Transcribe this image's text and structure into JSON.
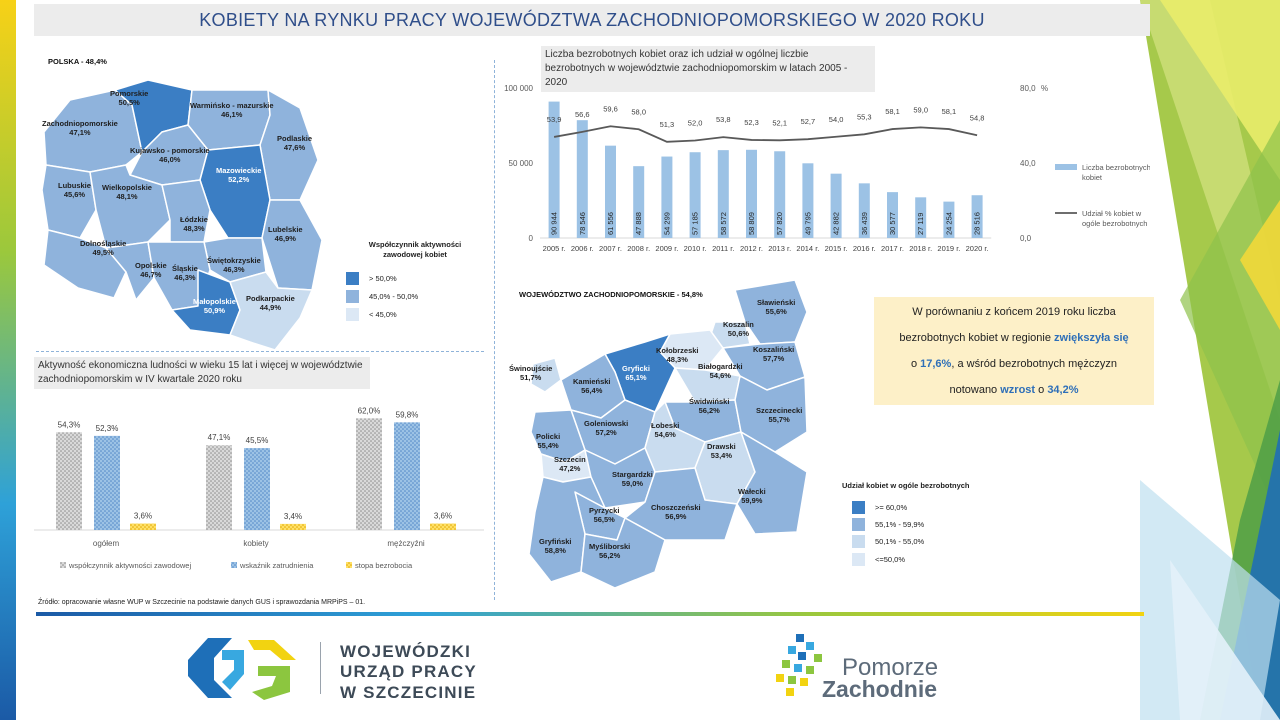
{
  "title": "KOBIETY NA RYNKU PRACY WOJEWÓDZTWA ZACHODNIOPOMORSKIEGO  W 2020 ROKU",
  "colors": {
    "dark": "#3b7ec4",
    "mid": "#8fb3dc",
    "light": "#c9dcef",
    "lighter": "#dce8f5",
    "title": "#2f4e8a",
    "accent": "#2e6fb8",
    "bar_blue": "#9cc2e5",
    "line": "#595959",
    "yellow": "#f2c21b",
    "grey_bar": "#bfbfbf"
  },
  "poland_map": {
    "heading": "POLSKA - 48,4%",
    "regions": [
      {
        "name": "Pomorskie",
        "value": "50,5%",
        "class": "dark"
      },
      {
        "name": "Warmińsko - mazurskie",
        "value": "46,1%",
        "class": "mid"
      },
      {
        "name": "Zachodniopomorskie",
        "value": "47,1%",
        "class": "mid"
      },
      {
        "name": "Podlaskie",
        "value": "47,6%",
        "class": "mid"
      },
      {
        "name": "Kujawsko - pomorskie",
        "value": "46,0%",
        "class": "mid"
      },
      {
        "name": "Mazowieckie",
        "value": "52,2%",
        "class": "dark"
      },
      {
        "name": "Lubuskie",
        "value": "45,6%",
        "class": "mid"
      },
      {
        "name": "Wielkopolskie",
        "value": "48,1%",
        "class": "mid"
      },
      {
        "name": "Łódzkie",
        "value": "48,3%",
        "class": "mid"
      },
      {
        "name": "Lubelskie",
        "value": "46,9%",
        "class": "mid"
      },
      {
        "name": "Dolnośląskie",
        "value": "49,5%",
        "class": "mid"
      },
      {
        "name": "Świętokrzyskie",
        "value": "46,3%",
        "class": "mid"
      },
      {
        "name": "Opolskie",
        "value": "46,7%",
        "class": "mid"
      },
      {
        "name": "Śląskie",
        "value": "46,3%",
        "class": "mid"
      },
      {
        "name": "Małopolskie",
        "value": "50,9%",
        "class": "dark"
      },
      {
        "name": "Podkarpackie",
        "value": "44,9%",
        "class": "light"
      }
    ],
    "legend_title": "Współczynnik aktywności zawodowej  kobiet",
    "legend": [
      {
        "label": "> 50,0%",
        "class": "dark"
      },
      {
        "label": "45,0%  - 50,0%",
        "class": "mid"
      },
      {
        "label": "< 45,0%",
        "class": "light"
      }
    ]
  },
  "activity_chart_title": "Aktywność ekonomiczna ludności w wieku 15 lat i więcej w województwie zachodniopomorskim w IV kwartale 2020 roku",
  "unemployment_chart_title": "Liczba bezrobotnych kobiet oraz ich udział w ogólnej liczbie bezrobotnych w województwie zachodniopomorskim w latach 2005 - 2020",
  "chart_data": [
    {
      "type": "bar",
      "title": "Aktywność ekonomiczna ludności w wieku 15 lat i więcej w województwie zachodniopomorskim w IV kwartale 2020 roku",
      "categories": [
        "ogółem",
        "kobiety",
        "mężczyźni"
      ],
      "series": [
        {
          "name": "współczynnik aktywności zawodowej",
          "values": [
            54.3,
            47.1,
            62.0
          ],
          "labels": [
            "54,3%",
            "47,1%",
            "62,0%"
          ]
        },
        {
          "name": "wskaźnik zatrudnienia",
          "values": [
            52.3,
            45.5,
            59.8
          ],
          "labels": [
            "52,3%",
            "45,5%",
            "59,8%"
          ]
        },
        {
          "name": "stopa bezrobocia",
          "values": [
            3.6,
            3.4,
            3.6
          ],
          "labels": [
            "3,6%",
            "3,4%",
            "3,6%"
          ]
        }
      ],
      "ylim": [
        0,
        70
      ],
      "legend_position": "bottom"
    },
    {
      "type": "bar+line",
      "title": "Liczba bezrobotnych kobiet oraz ich udział w ogólnej liczbie bezrobotnych w województwie zachodniopomorskim w latach 2005 - 2020",
      "categories": [
        "2005 r.",
        "2006 r.",
        "2007 r.",
        "2008 r.",
        "2009 r.",
        "2010 r.",
        "2011 r.",
        "2012 r.",
        "2013 r.",
        "2014 r.",
        "2015 r.",
        "2016 r.",
        "2017 r.",
        "2018 r.",
        "2019 r.",
        "2020 r."
      ],
      "series": [
        {
          "name": "Liczba bezrobotnych kobiet",
          "type": "bar",
          "axis": "left",
          "values": [
            90944,
            78546,
            61556,
            47888,
            54299,
            57185,
            58572,
            58809,
            57820,
            49795,
            42882,
            36439,
            30577,
            27119,
            24254,
            28516
          ],
          "labels": [
            "90 944",
            "78 546",
            "61 556",
            "47 888",
            "54 299",
            "57 185",
            "58 572",
            "58 809",
            "57 820",
            "49 795",
            "42 882",
            "36 439",
            "30 577",
            "27 119",
            "24 254",
            "28 516"
          ]
        },
        {
          "name": "Udział % kobiet w ogóle bezrobotnych",
          "type": "line",
          "axis": "right",
          "values": [
            53.9,
            56.6,
            59.6,
            58.0,
            51.3,
            52.0,
            53.8,
            52.3,
            52.1,
            52.7,
            54.0,
            55.3,
            58.1,
            59.0,
            58.1,
            54.8
          ],
          "labels": [
            "53,9",
            "56,6",
            "59,6",
            "58,0",
            "51,3",
            "52,0",
            "53,8",
            "52,3",
            "52,1",
            "52,7",
            "54,0",
            "55,3",
            "58,1",
            "59,0",
            "58,1",
            "54,8"
          ]
        }
      ],
      "ylim_left": [
        0,
        100000
      ],
      "yticks_left": [
        "0",
        "50 000",
        "100 000"
      ],
      "ylim_right": [
        0,
        80
      ],
      "yticks_right": [
        "0,0",
        "40,0",
        "80,0"
      ],
      "right_unit": "%",
      "legend_position": "right"
    }
  ],
  "zp_map": {
    "heading": "WOJEWÓDZTWO ZACHODNIOPOMORSKIE  - 54,8%",
    "regions": [
      {
        "name": "Sławieński",
        "value": "55,6%",
        "class": "mid"
      },
      {
        "name": "Koszalin",
        "value": "50,6%",
        "class": "light"
      },
      {
        "name": "Kołobrzeski",
        "value": "48,3%",
        "class": "lighter"
      },
      {
        "name": "Koszaliński",
        "value": "57,7%",
        "class": "mid"
      },
      {
        "name": "Świnoujście",
        "value": "51,7%",
        "class": "light"
      },
      {
        "name": "Gryficki",
        "value": "65,1%",
        "class": "dark"
      },
      {
        "name": "Kamieński",
        "value": "56,4%",
        "class": "mid"
      },
      {
        "name": "Białogardzki",
        "value": "54,6%",
        "class": "light"
      },
      {
        "name": "Świdwiński",
        "value": "56,2%",
        "class": "mid"
      },
      {
        "name": "Szczecinecki",
        "value": "55,7%",
        "class": "mid"
      },
      {
        "name": "Goleniowski",
        "value": "57,2%",
        "class": "mid"
      },
      {
        "name": "Łobeski",
        "value": "54,6%",
        "class": "light"
      },
      {
        "name": "Policki",
        "value": "55,4%",
        "class": "mid"
      },
      {
        "name": "Drawski",
        "value": "53,4%",
        "class": "light"
      },
      {
        "name": "Szczecin",
        "value": "47,2%",
        "class": "lighter"
      },
      {
        "name": "Stargardzki",
        "value": "59,0%",
        "class": "mid"
      },
      {
        "name": "Wałecki",
        "value": "59,9%",
        "class": "mid"
      },
      {
        "name": "Pyrzycki",
        "value": "56,5%",
        "class": "mid"
      },
      {
        "name": "Choszczeński",
        "value": "56,9%",
        "class": "mid"
      },
      {
        "name": "Gryfiński",
        "value": "58,8%",
        "class": "mid"
      },
      {
        "name": "Myśliborski",
        "value": "56,2%",
        "class": "mid"
      }
    ],
    "legend_title": "Udział kobiet w ogóle bezrobotnych",
    "legend": [
      {
        "label": ">= 60,0%",
        "class": "dark"
      },
      {
        "label": "55,1%  - 59,9%",
        "class": "mid"
      },
      {
        "label": "50,1%  - 55,0%",
        "class": "light"
      },
      {
        "label": "<=50,0%",
        "class": "lighter"
      }
    ]
  },
  "note": {
    "line1": "W porównaniu z końcem 2019 roku liczba",
    "line2a": "bezrobotnych kobiet w regionie ",
    "line2b": "zwiększyła się",
    "line3a": "o ",
    "line3b": "17,6%",
    "line3c": ", a wśród bezrobotnych mężczyzn",
    "line4a": "notowano ",
    "line4b": "wzrost",
    "line4c": " o ",
    "line4d": "34,2%"
  },
  "source": "Źródło: opracowanie własne WUP w Szczecinie na podstawie danych GUS i sprawozdania MRPiPS – 01.",
  "logo": {
    "line1": "WOJEWÓDZKI",
    "line2": "URZĄD PRACY",
    "line3": "W  SZCZECINIE"
  },
  "pz_logo": {
    "line1": "Pomorze",
    "line2": "Zachodnie"
  }
}
